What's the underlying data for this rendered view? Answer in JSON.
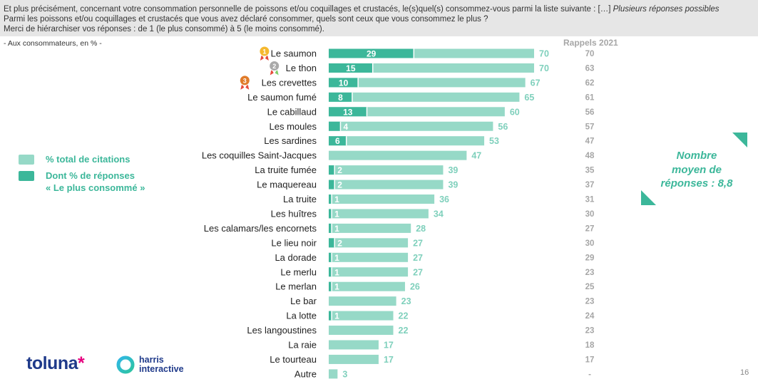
{
  "question": {
    "line1": "Et plus précisément, concernant votre consommation personnelle de poissons et/ou coquillages et crustacés, le(s)quel(s) consommez-vous parmi la liste suivante : […]",
    "line1_italic": "Plusieurs réponses possibles",
    "line2": "Parmi les poissons et/ou coquillages et crustacés que vous avez déclaré consommer, quels sont ceux que vous consommez le plus ?",
    "line3": "Merci de hiérarchiser vos réponses : de 1 (le plus consommé) à 5 (le moins consommé)."
  },
  "scope_note": "- Aux consommateurs, en % -",
  "rappels_title": "Rappels 2021",
  "legend": {
    "total": "% total de citations",
    "most_line1": "Dont % de réponses",
    "most_line2": "« Le plus consommé »"
  },
  "note": {
    "line1": "Nombre",
    "line2": "moyen de",
    "line3": "réponses : 8,8"
  },
  "branding": {
    "toluna": "toluna",
    "harris_line1": "harris",
    "harris_line2": "interactive"
  },
  "page_number": "16",
  "colors": {
    "total_bar": "#96d9c7",
    "most_bar": "#3cb79a",
    "total_label": "#7fd0bc",
    "category_text": "#222222",
    "rappels_text": "#a6a6a6",
    "gold_medal": "#f5b82e",
    "silver_medal": "#a9a9a9",
    "bronze_medal": "#e07b2a"
  },
  "chart_data": {
    "type": "bar",
    "orientation": "horizontal",
    "categories": [
      "Le saumon",
      "Le thon",
      "Les crevettes",
      "Le saumon fumé",
      "Le cabillaud",
      "Les moules",
      "Les sardines",
      "Les coquilles Saint-Jacques",
      "La truite fumée",
      "Le maquereau",
      "La truite",
      "Les huîtres",
      "Les calamars/les encornets",
      "Le lieu noir",
      "La dorade",
      "Le merlu",
      "Le merlan",
      "Le bar",
      "La lotte",
      "Les langoustines",
      "La raie",
      "Le tourteau",
      "Autre"
    ],
    "series": [
      {
        "name": "% total de citations",
        "values": [
          70,
          70,
          67,
          65,
          60,
          56,
          53,
          47,
          39,
          39,
          36,
          34,
          28,
          27,
          27,
          27,
          26,
          23,
          22,
          22,
          17,
          17,
          3
        ]
      },
      {
        "name": "Dont % de réponses « Le plus consommé »",
        "values": [
          29,
          15,
          10,
          8,
          13,
          4,
          6,
          null,
          2,
          2,
          1,
          1,
          1,
          2,
          1,
          1,
          1,
          null,
          1,
          null,
          null,
          null,
          null
        ]
      },
      {
        "name": "Rappels 2021",
        "values": [
          "70",
          "63",
          "62",
          "61",
          "56",
          "57",
          "47",
          "48",
          "35",
          "37",
          "31",
          "30",
          "27",
          "30",
          "29",
          "23",
          "25",
          "23",
          "24",
          "23",
          "18",
          "17",
          "-"
        ]
      }
    ],
    "medals": {
      "Le saumon": "1",
      "Le thon": "2",
      "Les crevettes": "3"
    },
    "xlim": [
      0,
      70
    ]
  }
}
